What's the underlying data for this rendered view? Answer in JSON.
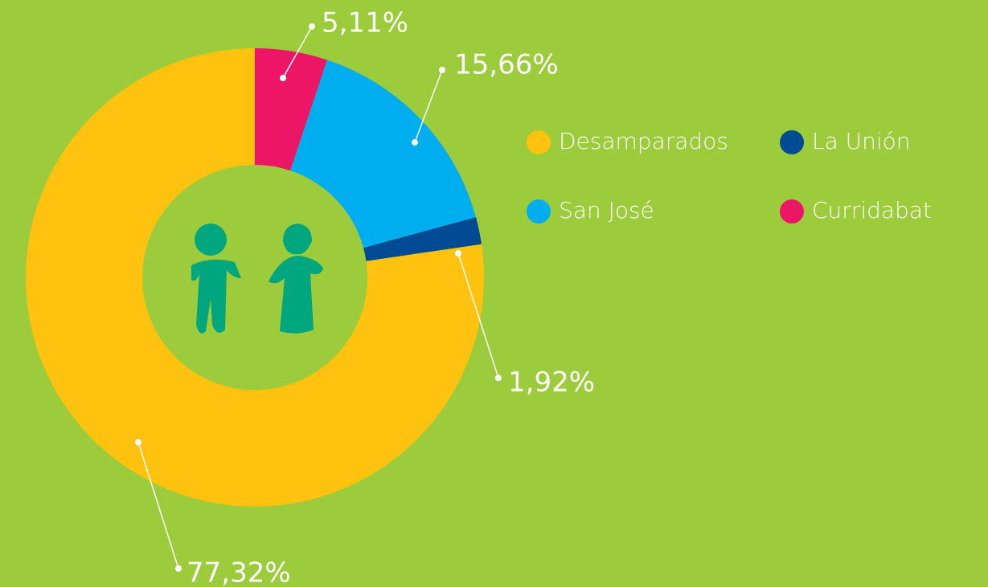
{
  "chart_data": {
    "type": "donut",
    "categories": [
      "Curridabat",
      "San José",
      "La Unión",
      "Desamparados"
    ],
    "values": [
      5.11,
      15.66,
      1.92,
      77.32
    ],
    "value_labels": [
      "5,11%",
      "15,66%",
      "1,92%",
      "77,32%"
    ],
    "colors": [
      "#ec1566",
      "#00aeef",
      "#004b93",
      "#ffc20e"
    ],
    "legend": "right"
  }
}
